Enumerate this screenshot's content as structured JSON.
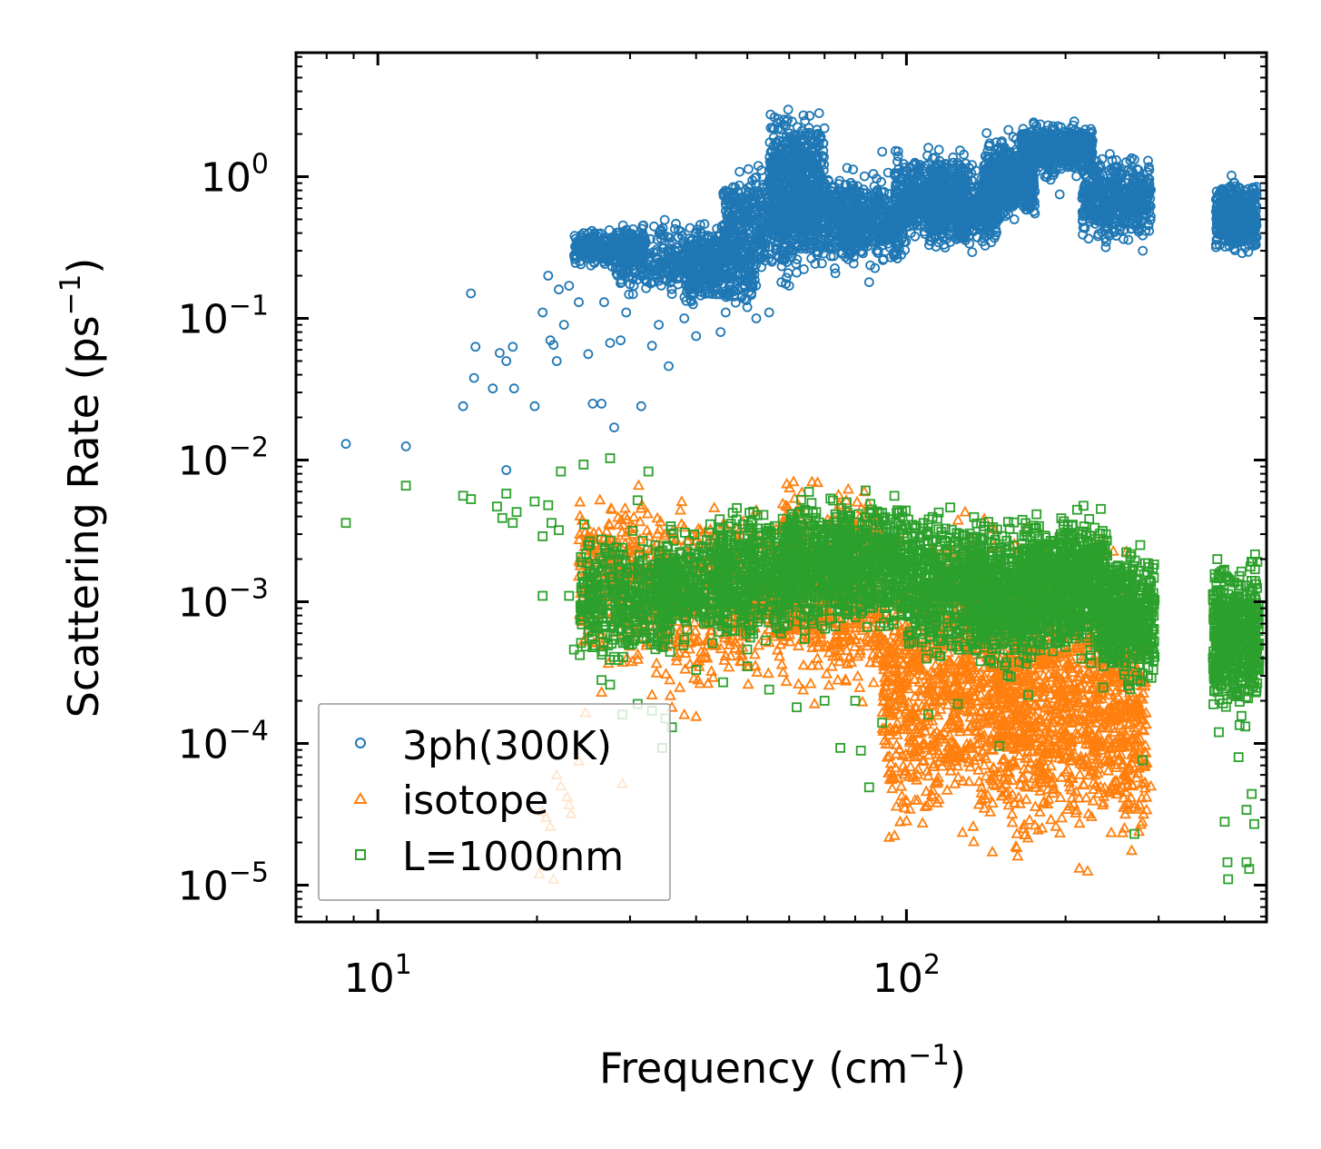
{
  "chart_data": {
    "type": "scatter",
    "title": "",
    "xlabel": "Frequency (cm",
    "xlabel_sup": "−1",
    "xlabel_end": ")",
    "ylabel": "Scattering Rate (ps",
    "ylabel_sup": "−1",
    "ylabel_end": ")",
    "xscale": "log",
    "yscale": "log",
    "xlim": [
      7.0,
      480
    ],
    "ylim": [
      5.5e-06,
      7.5
    ],
    "legend_position": "lower-left",
    "x_ticks": [
      {
        "value": 10,
        "base": "10",
        "exp": "1"
      },
      {
        "value": 100,
        "base": "10",
        "exp": "2"
      }
    ],
    "y_ticks": [
      {
        "value": 1,
        "base": "10",
        "exp": "0"
      },
      {
        "value": 0.1,
        "base": "10",
        "exp": "−1"
      },
      {
        "value": 0.01,
        "base": "10",
        "exp": "−2"
      },
      {
        "value": 0.001,
        "base": "10",
        "exp": "−3"
      },
      {
        "value": 0.0001,
        "base": "10",
        "exp": "−4"
      },
      {
        "value": 1e-05,
        "base": "10",
        "exp": "−5"
      }
    ],
    "series": [
      {
        "name": "3ph(300K)",
        "marker": "circle",
        "color": "#1f77b4",
        "sparse_points": [
          [
            8.7,
            0.013
          ],
          [
            11.3,
            0.0125
          ],
          [
            14.5,
            0.024
          ],
          [
            15,
            0.15
          ],
          [
            15.3,
            0.063
          ],
          [
            15.2,
            0.038
          ],
          [
            16.5,
            0.032
          ],
          [
            17,
            0.057
          ],
          [
            17.5,
            0.05
          ],
          [
            18,
            0.063
          ],
          [
            18.1,
            0.032
          ],
          [
            17.5,
            0.0085
          ],
          [
            19.8,
            0.024
          ],
          [
            20.5,
            0.11
          ],
          [
            21,
            0.2
          ],
          [
            21.2,
            0.07
          ],
          [
            21.8,
            0.05
          ],
          [
            22,
            0.16
          ],
          [
            22.5,
            0.09
          ],
          [
            21.5,
            0.065
          ],
          [
            23,
            0.17
          ],
          [
            24,
            0.13
          ],
          [
            25,
            0.056
          ],
          [
            25.5,
            0.025
          ],
          [
            26.5,
            0.025
          ],
          [
            26.8,
            0.13
          ],
          [
            27.5,
            0.067
          ],
          [
            28,
            0.017
          ],
          [
            28.8,
            0.07
          ],
          [
            29.5,
            0.11
          ],
          [
            30.5,
            0.17
          ],
          [
            31.5,
            0.024
          ],
          [
            33,
            0.064
          ],
          [
            34,
            0.09
          ],
          [
            35.5,
            0.046
          ],
          [
            38,
            0.1
          ],
          [
            40,
            0.075
          ],
          [
            42,
            0.15
          ],
          [
            44,
            0.22
          ],
          [
            44.5,
            0.08
          ],
          [
            45.5,
            0.11
          ],
          [
            48,
            0.16
          ],
          [
            50,
            0.12
          ],
          [
            52,
            0.1
          ],
          [
            55,
            0.11
          ],
          [
            58,
            0.18
          ],
          [
            60,
            0.17
          ],
          [
            62,
            0.21
          ],
          [
            69,
            0.4
          ],
          [
            90,
            1.5
          ],
          [
            92,
            0.5
          ],
          [
            102,
            0.4
          ],
          [
            105,
            1.1
          ],
          [
            110,
            1.6
          ],
          [
            120,
            1.0
          ],
          [
            125,
            0.5
          ],
          [
            135,
            0.45
          ],
          [
            140,
            0.95
          ],
          [
            150,
            1.2
          ],
          [
            160,
            0.5
          ],
          [
            170,
            2.0
          ],
          [
            175,
            0.55
          ],
          [
            185,
            1.8
          ],
          [
            195,
            0.75
          ],
          [
            202,
            1.5
          ],
          [
            215,
            2.0
          ],
          [
            230,
            1.1
          ],
          [
            245,
            1.3
          ],
          [
            265,
            1.3
          ],
          [
            280,
            0.3
          ],
          [
            85,
            0.18
          ],
          [
            94,
            0.4
          ]
        ],
        "bands": [
          {
            "x": [
              23.5,
              32
            ],
            "y": [
              0.22,
              0.45
            ],
            "n": 380
          },
          {
            "x": [
              28,
              45
            ],
            "y": [
              0.12,
              0.55
            ],
            "n": 380
          },
          {
            "x": [
              38,
              52
            ],
            "y": [
              0.1,
              0.5
            ],
            "n": 300
          },
          {
            "x": [
              45,
              62
            ],
            "y": [
              0.15,
              1.5
            ],
            "n": 420
          },
          {
            "x": [
              55,
              70
            ],
            "y": [
              0.3,
              3.5
            ],
            "n": 520
          },
          {
            "x": [
              62,
              80
            ],
            "y": [
              0.18,
              1.4
            ],
            "n": 380
          },
          {
            "x": [
              75,
              100
            ],
            "y": [
              0.2,
              1.2
            ],
            "n": 420
          },
          {
            "x": [
              95,
              130
            ],
            "y": [
              0.3,
              1.7
            ],
            "n": 480
          },
          {
            "x": [
              110,
              150
            ],
            "y": [
              0.25,
              1.6
            ],
            "n": 520
          },
          {
            "x": [
              140,
              175
            ],
            "y": [
              0.45,
              2.2
            ],
            "n": 520
          },
          {
            "x": [
              165,
              225
            ],
            "y": [
              0.9,
              2.6
            ],
            "n": 520
          },
          {
            "x": [
              215,
              290
            ],
            "y": [
              0.3,
              1.6
            ],
            "n": 480
          },
          {
            "x": [
              385,
              460
            ],
            "y": [
              0.25,
              1.1
            ],
            "n": 480
          }
        ]
      },
      {
        "name": "isotope",
        "marker": "triangle",
        "color": "#ff7f0e",
        "sparse_points": [
          [
            20.2,
            1.2e-05
          ],
          [
            20.5,
            3.3e-05
          ],
          [
            20.8,
            3e-05
          ],
          [
            21.2,
            2.6e-05
          ],
          [
            21.5,
            1.1e-05
          ],
          [
            21.8,
            6e-05
          ],
          [
            22.2,
            5e-05
          ],
          [
            22.8,
            4.2e-05
          ],
          [
            23,
            3.7e-05
          ],
          [
            23.2,
            3.2e-05
          ],
          [
            24,
            7.5e-05
          ],
          [
            24.7,
            0.000165
          ],
          [
            26.5,
            0.00023
          ],
          [
            29,
            5.2e-05
          ],
          [
            33,
            0.00022
          ],
          [
            36,
            0.00018
          ],
          [
            38,
            0.00016
          ],
          [
            40,
            0.000155
          ],
          [
            42,
            0.0004
          ],
          [
            92,
            8e-05
          ],
          [
            93,
            5.6e-05
          ],
          [
            94,
            4.8e-05
          ],
          [
            290,
            5e-05
          ]
        ],
        "bands": [
          {
            "x": [
              24,
              33
            ],
            "y": [
              0.00025,
              0.009
            ],
            "n": 260
          },
          {
            "x": [
              33,
              45
            ],
            "y": [
              0.00015,
              0.008
            ],
            "n": 240
          },
          {
            "x": [
              45,
              58
            ],
            "y": [
              0.00018,
              0.006
            ],
            "n": 220
          },
          {
            "x": [
              58,
              72
            ],
            "y": [
              0.00015,
              0.011
            ],
            "n": 260
          },
          {
            "x": [
              72,
              90
            ],
            "y": [
              0.00015,
              0.011
            ],
            "n": 280
          },
          {
            "x": [
              90,
              115
            ],
            "y": [
              1.2e-05,
              0.004
            ],
            "n": 380
          },
          {
            "x": [
              115,
              145
            ],
            "y": [
              1.3e-05,
              0.007
            ],
            "n": 420
          },
          {
            "x": [
              145,
              180
            ],
            "y": [
              1.05e-05,
              0.005
            ],
            "n": 480
          },
          {
            "x": [
              180,
              240
            ],
            "y": [
              1.05e-05,
              0.004
            ],
            "n": 520
          },
          {
            "x": [
              240,
              285
            ],
            "y": [
              1.1e-05,
              0.0025
            ],
            "n": 320
          }
        ]
      },
      {
        "name": "L=1000nm",
        "marker": "square",
        "color": "#2ca02c",
        "sparse_points": [
          [
            8.7,
            0.0036
          ],
          [
            11.3,
            0.0066
          ],
          [
            14.5,
            0.0056
          ],
          [
            15,
            0.0053
          ],
          [
            16.8,
            0.0047
          ],
          [
            17.2,
            0.0039
          ],
          [
            17.5,
            0.0058
          ],
          [
            18,
            0.0036
          ],
          [
            18.3,
            0.0043
          ],
          [
            19.8,
            0.0051
          ],
          [
            20.5,
            0.0029
          ],
          [
            21,
            0.0048
          ],
          [
            21.3,
            0.0036
          ],
          [
            20.5,
            0.0011
          ],
          [
            22,
            0.0032
          ],
          [
            22.2,
            0.0083
          ],
          [
            23,
            0.0011
          ],
          [
            24.5,
            0.0093
          ],
          [
            26,
            0.0013
          ],
          [
            27.5,
            0.0103
          ],
          [
            29,
            0.0024
          ],
          [
            31,
            0.0052
          ],
          [
            32.5,
            0.0083
          ],
          [
            33.5,
            0.0025
          ],
          [
            34.5,
            0.0019
          ],
          [
            23.5,
            0.00046
          ],
          [
            26.5,
            0.00028
          ],
          [
            27.5,
            0.00026
          ],
          [
            29,
            0.00016
          ],
          [
            31,
            0.00019
          ],
          [
            33,
            0.00017
          ],
          [
            35,
            0.00015
          ],
          [
            36,
            0.00013
          ],
          [
            34.5,
            9.3e-05
          ],
          [
            40,
            0.00033
          ],
          [
            45,
            0.00027
          ],
          [
            50,
            0.00035
          ],
          [
            55,
            0.00024
          ],
          [
            62,
            0.00018
          ],
          [
            70,
            0.0002
          ],
          [
            75,
            9.3e-05
          ],
          [
            80,
            0.0002
          ],
          [
            82,
            8.9e-05
          ],
          [
            85,
            4.9e-05
          ],
          [
            90,
            0.00014
          ],
          [
            110,
            0.00016
          ],
          [
            125,
            0.00019
          ],
          [
            150,
            9.6e-05
          ],
          [
            170,
            0.00022
          ],
          [
            200,
            0.00048
          ],
          [
            270,
            2.3e-05
          ],
          [
            280,
            7.6e-05
          ],
          [
            390,
            0.00012
          ],
          [
            400,
            2.8e-05
          ],
          [
            405,
            1.45e-05
          ],
          [
            406,
            1.1e-05
          ],
          [
            425,
            8e-05
          ],
          [
            440,
            1.45e-05
          ],
          [
            445,
            1.3e-05
          ],
          [
            450,
            4.4e-05
          ],
          [
            455,
            2.7e-05
          ],
          [
            440,
            3.4e-05
          ]
        ],
        "bands": [
          {
            "x": [
              24,
              36
            ],
            "y": [
              0.0003,
              0.004
            ],
            "n": 380
          },
          {
            "x": [
              34,
              46
            ],
            "y": [
              0.0004,
              0.004
            ],
            "n": 340
          },
          {
            "x": [
              44,
              60
            ],
            "y": [
              0.0004,
              0.006
            ],
            "n": 420
          },
          {
            "x": [
              58,
              78
            ],
            "y": [
              0.0005,
              0.007
            ],
            "n": 480
          },
          {
            "x": [
              75,
              100
            ],
            "y": [
              0.0005,
              0.007
            ],
            "n": 460
          },
          {
            "x": [
              100,
              140
            ],
            "y": [
              0.0003,
              0.006
            ],
            "n": 520
          },
          {
            "x": [
              135,
              170
            ],
            "y": [
              0.00025,
              0.005
            ],
            "n": 480
          },
          {
            "x": [
              165,
              200
            ],
            "y": [
              0.0003,
              0.005
            ],
            "n": 420
          },
          {
            "x": [
              195,
              240
            ],
            "y": [
              0.0003,
              0.006
            ],
            "n": 460
          },
          {
            "x": [
              235,
              295
            ],
            "y": [
              0.0002,
              0.003
            ],
            "n": 460
          },
          {
            "x": [
              380,
              465
            ],
            "y": [
              0.00012,
              0.0026
            ],
            "n": 520
          }
        ]
      }
    ]
  }
}
